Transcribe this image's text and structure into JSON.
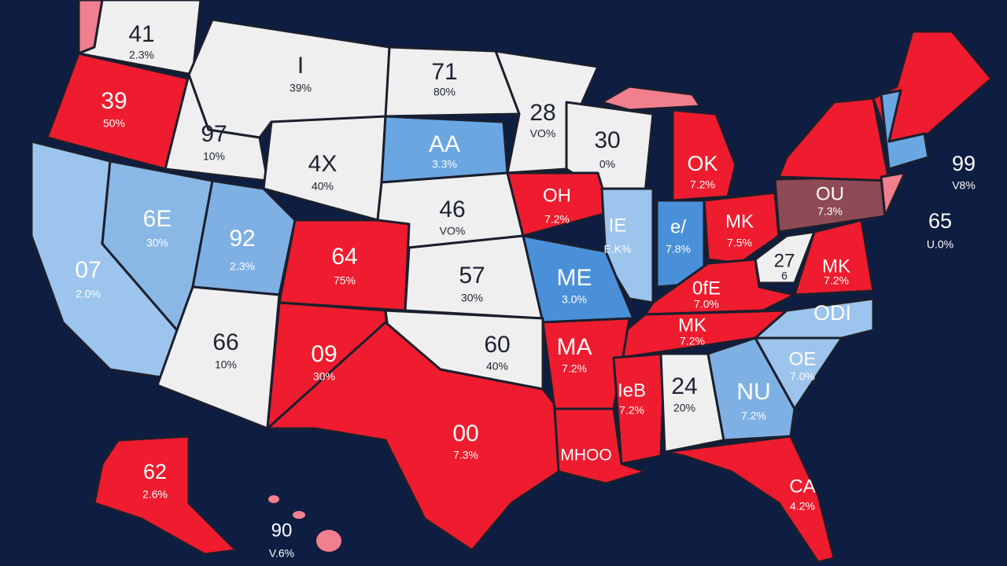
{
  "labels": [
    {
      "name": "41",
      "share": "2.3%"
    },
    {
      "name": "I",
      "share": "39%"
    },
    {
      "name": "71",
      "share": "80%"
    },
    {
      "name": "39",
      "share": "50%"
    },
    {
      "name": "97",
      "share": "10%"
    },
    {
      "name": "4X",
      "share": "40%"
    },
    {
      "name": "AA",
      "share": "3.3%"
    },
    {
      "name": "28",
      "share": "VO%"
    },
    {
      "name": "30",
      "share": "0%"
    },
    {
      "name": "OK",
      "share": "7.2%"
    },
    {
      "name": "OU",
      "share": "7.3%"
    },
    {
      "name": "99",
      "share": "V8%"
    },
    {
      "name": "65",
      "share": "U.0%"
    },
    {
      "name": "OH",
      "share": "7.2%"
    },
    {
      "name": "46",
      "share": "VO%"
    },
    {
      "name": "6E",
      "share": "30%"
    },
    {
      "name": "92",
      "share": "2.3%"
    },
    {
      "name": "64",
      "share": "75%"
    },
    {
      "name": "07",
      "share": "2.0%"
    },
    {
      "name": "57",
      "share": "30%"
    },
    {
      "name": "ME",
      "share": "3.0%"
    },
    {
      "name": "e/",
      "share": "7.8%"
    },
    {
      "name": "IE",
      "share": "E.K%"
    },
    {
      "name": "MK",
      "share": "7.5%"
    },
    {
      "name": "27",
      "share": "6"
    },
    {
      "name": "MK",
      "share": "7.2%"
    },
    {
      "name": "0fE",
      "share": "7.0%"
    },
    {
      "name": "ODI"
    },
    {
      "name": "MK",
      "share": "7.2%"
    },
    {
      "name": "66",
      "share": "10%"
    },
    {
      "name": "09",
      "share": "30%"
    },
    {
      "name": "60",
      "share": "40%"
    },
    {
      "name": "MA",
      "share": "7.2%"
    },
    {
      "name": "OE",
      "share": "7.0%"
    },
    {
      "name": "24",
      "share": "20%"
    },
    {
      "name": "NU",
      "share": "7.2%"
    },
    {
      "name": "IeB",
      "share": "7.2%"
    },
    {
      "name": "00",
      "share": "7.3%"
    },
    {
      "name": "MHOO"
    },
    {
      "name": "CA",
      "share": "4.2%"
    },
    {
      "name": "62",
      "share": "2.6%"
    },
    {
      "name": "90",
      "share": "V.6%"
    }
  ]
}
